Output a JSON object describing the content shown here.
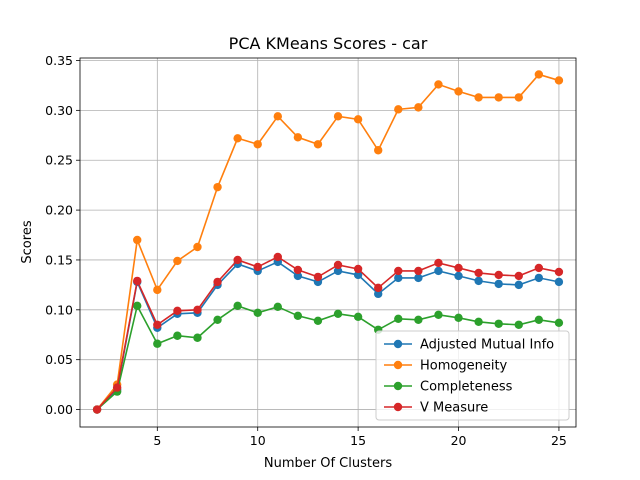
{
  "chart_data": {
    "type": "line",
    "title": "PCA KMeans Scores - car",
    "xlabel": "Number Of Clusters",
    "ylabel": "Scores",
    "xlim": [
      1.15,
      25.85
    ],
    "ylim": [
      -0.0175,
      0.3525
    ],
    "xticks": [
      5,
      10,
      15,
      20,
      25
    ],
    "yticks": [
      "0.00",
      "0.05",
      "0.10",
      "0.15",
      "0.20",
      "0.25",
      "0.30",
      "0.35"
    ],
    "grid": true,
    "legend_position": "lower-right",
    "x": [
      2,
      3,
      4,
      5,
      6,
      7,
      8,
      9,
      10,
      11,
      12,
      13,
      14,
      15,
      16,
      17,
      18,
      19,
      20,
      21,
      22,
      23,
      24,
      25
    ],
    "series": [
      {
        "name": "Adjusted Mutual Info",
        "color": "#1f77b4",
        "values": [
          0.0,
          0.02,
          0.128,
          0.082,
          0.096,
          0.097,
          0.125,
          0.146,
          0.139,
          0.148,
          0.134,
          0.128,
          0.139,
          0.135,
          0.116,
          0.132,
          0.132,
          0.139,
          0.134,
          0.129,
          0.126,
          0.125,
          0.132,
          0.128
        ]
      },
      {
        "name": "Homogeneity",
        "color": "#ff7f0e",
        "values": [
          0.0,
          0.025,
          0.17,
          0.12,
          0.149,
          0.163,
          0.223,
          0.272,
          0.266,
          0.294,
          0.273,
          0.266,
          0.294,
          0.291,
          0.26,
          0.301,
          0.303,
          0.326,
          0.319,
          0.313,
          0.313,
          0.313,
          0.336,
          0.33
        ]
      },
      {
        "name": "Completeness",
        "color": "#2ca02c",
        "values": [
          0.0,
          0.018,
          0.104,
          0.066,
          0.074,
          0.072,
          0.09,
          0.104,
          0.097,
          0.103,
          0.094,
          0.089,
          0.096,
          0.093,
          0.08,
          0.091,
          0.09,
          0.095,
          0.092,
          0.088,
          0.086,
          0.085,
          0.09,
          0.087
        ]
      },
      {
        "name": "V Measure",
        "color": "#d62728",
        "values": [
          0.0,
          0.022,
          0.129,
          0.085,
          0.099,
          0.1,
          0.128,
          0.15,
          0.143,
          0.153,
          0.14,
          0.133,
          0.145,
          0.141,
          0.122,
          0.139,
          0.139,
          0.147,
          0.142,
          0.137,
          0.135,
          0.134,
          0.142,
          0.138
        ]
      }
    ]
  }
}
